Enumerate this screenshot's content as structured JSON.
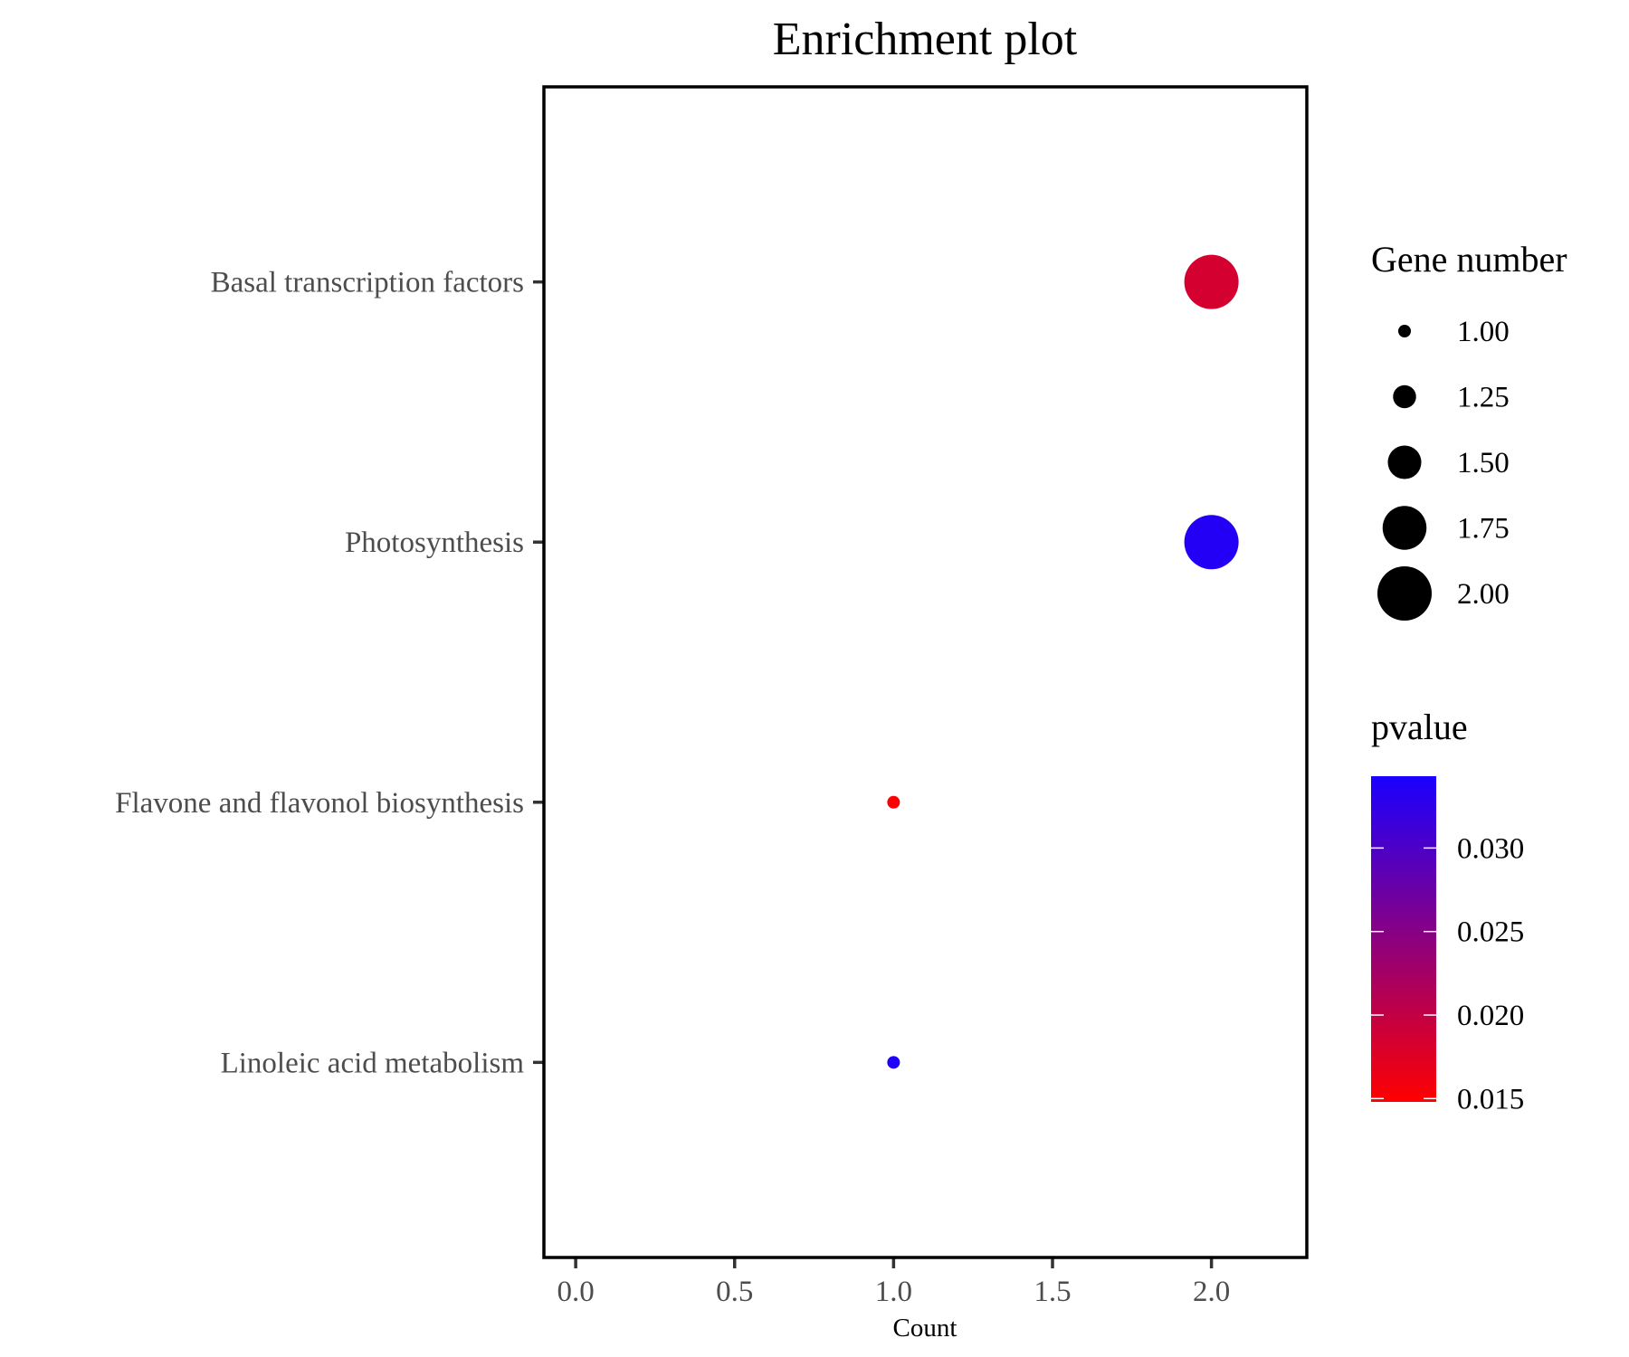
{
  "chart_data": {
    "type": "scatter",
    "title": "Enrichment plot",
    "xlabel": "Count",
    "ylabel": "",
    "xlim": [
      -0.1,
      2.3
    ],
    "xticks": [
      0.0,
      0.5,
      1.0,
      1.5,
      2.0
    ],
    "xtick_labels": [
      "0.0",
      "0.5",
      "1.0",
      "1.5",
      "2.0"
    ],
    "categories": [
      "Basal transcription factors",
      "Photosynthesis",
      "Flavone and flavonol biosynthesis",
      "Linoleic acid metabolism"
    ],
    "points": [
      {
        "term": "Basal transcription factors",
        "count": 2,
        "gene_number": 2,
        "pvalue": 0.0185
      },
      {
        "term": "Photosynthesis",
        "count": 2,
        "gene_number": 2,
        "pvalue": 0.0335
      },
      {
        "term": "Flavone and flavonol biosynthesis",
        "count": 1,
        "gene_number": 1,
        "pvalue": 0.015
      },
      {
        "term": "Linoleic acid metabolism",
        "count": 1,
        "gene_number": 1,
        "pvalue": 0.034
      }
    ],
    "grid": false,
    "legend_position": "right",
    "size_legend": {
      "title": "Gene number",
      "values": [
        1.0,
        1.25,
        1.5,
        1.75,
        2.0
      ],
      "labels": [
        "1.00",
        "1.25",
        "1.50",
        "1.75",
        "2.00"
      ],
      "color": "#000000"
    },
    "color_legend": {
      "title": "pvalue",
      "range": [
        0.0148,
        0.0343
      ],
      "ticks": [
        0.015,
        0.02,
        0.025,
        0.03
      ],
      "labels": [
        "0.015",
        "0.020",
        "0.025",
        "0.030"
      ],
      "low_color": "#ff0000",
      "high_color": "#1a00ff"
    }
  }
}
